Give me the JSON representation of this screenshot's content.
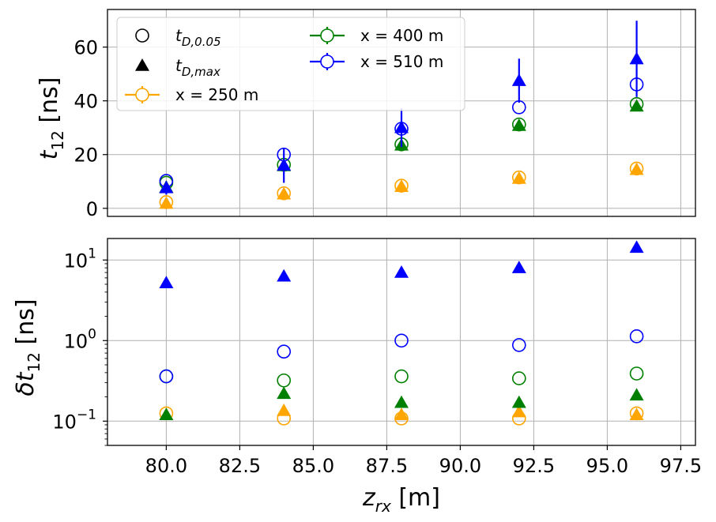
{
  "chart_data": [
    {
      "type": "scatter",
      "panel": "top",
      "ylabel": "t12 [ns]",
      "ylim": [
        -3,
        74
      ],
      "xlim": [
        78.0,
        98.0
      ],
      "yticks": [
        0,
        20,
        40,
        60
      ],
      "grid": true,
      "legend": {
        "placement": "top-left",
        "entries": [
          {
            "label": "t_D,0.05",
            "marker": "open-circle",
            "color": "#000000"
          },
          {
            "label": "t_D,max",
            "marker": "triangle",
            "color": "#000000"
          },
          {
            "label": "x = 250 m",
            "marker": "open-circle-errorbar",
            "color": "#FFA500"
          },
          {
            "label": "x = 400 m",
            "marker": "open-circle-errorbar",
            "color": "#008000"
          },
          {
            "label": "x = 510 m",
            "marker": "open-circle-errorbar",
            "color": "#0000FF"
          }
        ]
      },
      "x": [
        80,
        84,
        88,
        92,
        96
      ],
      "series": [
        {
          "name": "x = 250 m",
          "color": "#FFA500",
          "t_D_005": [
            2.3,
            5.6,
            8.4,
            11.5,
            14.8
          ],
          "t_D_max": [
            1.8,
            5.3,
            8.1,
            11.1,
            14.4
          ],
          "t_D_max_err": [
            0.1,
            0.2,
            0.1,
            0.1,
            0.1
          ]
        },
        {
          "name": "x = 400 m",
          "color": "#008000",
          "t_D_005": [
            9.5,
            16.2,
            23.8,
            31.2,
            38.8
          ],
          "t_D_max": [
            7.8,
            15.8,
            23.5,
            30.8,
            38.0
          ],
          "t_D_max_err": [
            0.1,
            0.2,
            0.2,
            0.2,
            0.2
          ]
        },
        {
          "name": "x = 510 m",
          "color": "#0000FF",
          "t_D_005": [
            10.2,
            20.0,
            29.6,
            37.6,
            46.1
          ],
          "t_D_max": [
            7.6,
            16.0,
            30.0,
            47.5,
            55.6
          ],
          "t_D_max_err": [
            2.5,
            6.5,
            7.2,
            8.2,
            14.2
          ]
        }
      ]
    },
    {
      "type": "scatter",
      "panel": "bottom",
      "yscale": "log",
      "ylabel": "δt12 [ns]",
      "xlabel": "z_rx [m]",
      "ylim": [
        0.05,
        18.5
      ],
      "xlim": [
        78.0,
        98.0
      ],
      "yticks": [
        0.1,
        1,
        10
      ],
      "yticklabels": [
        [
          "10",
          "−1"
        ],
        [
          "10",
          "0"
        ],
        [
          "10",
          "1"
        ]
      ],
      "xticks": [
        "80.0",
        "82.5",
        "85.0",
        "87.5",
        "90.0",
        "92.5",
        "95.0",
        "97.5"
      ],
      "grid": true,
      "x": [
        80,
        84,
        88,
        92,
        96
      ],
      "series": [
        {
          "name": "x = 250 m",
          "color": "#FFA500",
          "dt_D_005": [
            0.125,
            0.108,
            0.108,
            0.108,
            0.125
          ],
          "dt_D_max": [
            0.12,
            0.135,
            0.12,
            0.13,
            0.12
          ]
        },
        {
          "name": "x = 400 m",
          "color": "#008000",
          "dt_D_005": [
            0.36,
            0.32,
            0.36,
            0.34,
            0.39
          ],
          "dt_D_max": [
            0.12,
            0.22,
            0.17,
            0.17,
            0.21
          ]
        },
        {
          "name": "x = 510 m",
          "color": "#0000FF",
          "dt_D_005": [
            0.36,
            0.73,
            1.0,
            0.88,
            1.13
          ],
          "dt_D_max": [
            5.2,
            6.3,
            7.0,
            8.0,
            14.3
          ]
        }
      ]
    }
  ]
}
